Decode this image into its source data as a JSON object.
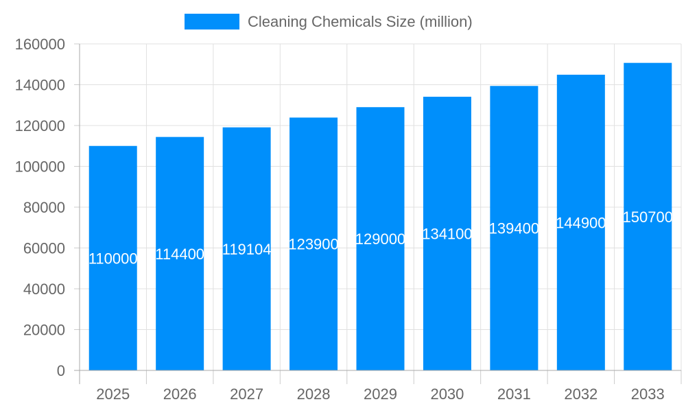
{
  "chart_data": {
    "type": "bar",
    "title": "",
    "xlabel": "",
    "ylabel": "",
    "categories": [
      "2025",
      "2026",
      "2027",
      "2028",
      "2029",
      "2030",
      "2031",
      "2032",
      "2033"
    ],
    "series": [
      {
        "name": "Cleaning Chemicals Size (million)",
        "values": [
          110000,
          114400,
          119104,
          123900,
          129000,
          134100,
          139400,
          144900,
          150700
        ],
        "color": "#008ffb"
      }
    ],
    "ylim": [
      0,
      160000
    ],
    "yticks": [
      0,
      20000,
      40000,
      60000,
      80000,
      100000,
      120000,
      140000,
      160000
    ],
    "grid": true,
    "legend": "top-center",
    "data_labels": true
  }
}
